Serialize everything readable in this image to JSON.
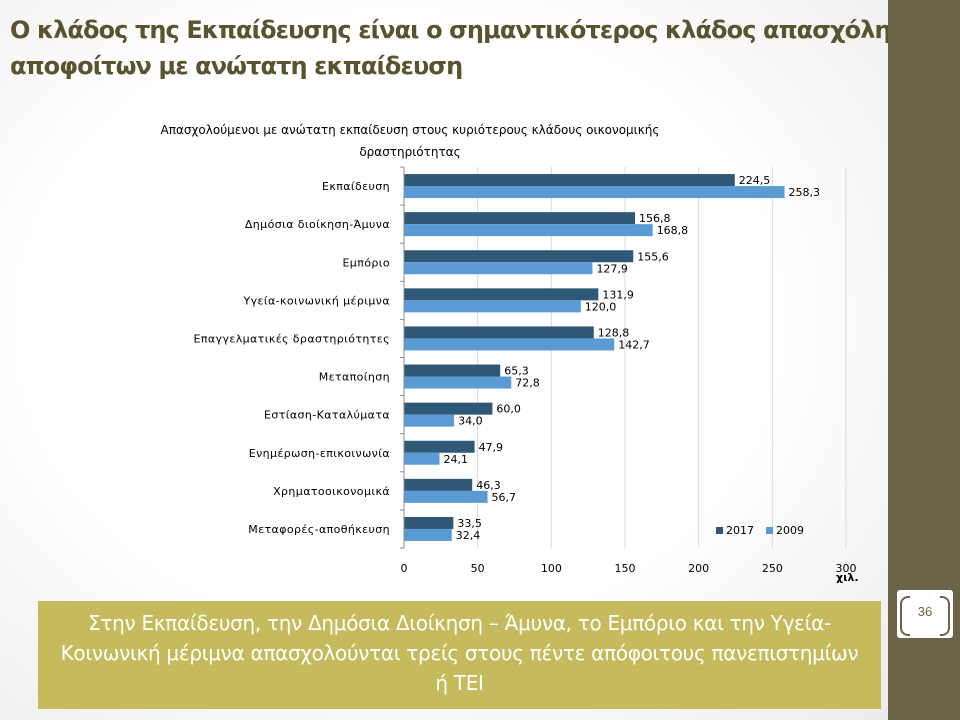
{
  "slide": {
    "title_line1": "Ο κλάδος της Εκπαίδευσης είναι ο σημαντικότερος κλάδος απασχόλησ",
    "title_line2": "αποφοίτων με ανώτατη εκπαίδευση",
    "page_number": "36",
    "callout": "Στην Εκπαίδευση, την Δημόσια Διοίκηση – Άμυνα, το Εμπόριο και την Υγεία-Κοινωνική μέριμνα απασχολούνται τρείς στους πέντε απόφοιτους πανεπιστημίων ή ΤΕΙ",
    "colors": {
      "side_bar": "#6c6449",
      "title": "#59542f",
      "callout_bg": "#c5bb5d",
      "series_2017": "#2e5876",
      "series_2009": "#5b9bd5"
    }
  },
  "chart_data": {
    "type": "bar",
    "orientation": "horizontal",
    "title_line1": "Απασχολούμενοι με ανώτατη εκπαίδευση στους κυριότερους κλάδους οικονομικής",
    "title_line2": "δραστηριότητας",
    "categories": [
      "Εκπαίδευση",
      "Δημόσια διοίκηση-Άμυνα",
      "Εμπόριο",
      "Υγεία-κοινωνική μέριμνα",
      "Επαγγελματικές δραστηριότητες",
      "Μεταποίηση",
      "Εστίαση-Καταλύματα",
      "Ενημέρωση-επικοινωνία",
      "Χρηματοοικονομικά",
      "Μεταφορές-αποθήκευση"
    ],
    "series": [
      {
        "name": "2017",
        "color": "#2e5876",
        "values": [
          224.5,
          156.8,
          155.6,
          131.9,
          128.8,
          65.3,
          60.0,
          47.9,
          46.3,
          33.5
        ],
        "labels": [
          "224,5",
          "156,8",
          "155,6",
          "131,9",
          "128,8",
          "65,3",
          "60,0",
          "47,9",
          "46,3",
          "33,5"
        ]
      },
      {
        "name": "2009",
        "color": "#5b9bd5",
        "values": [
          258.3,
          168.8,
          127.9,
          120.0,
          142.7,
          72.8,
          34.0,
          24.1,
          56.7,
          32.4
        ],
        "labels": [
          "258,3",
          "168,8",
          "127,9",
          "120,0",
          "142,7",
          "72,8",
          "34,0",
          "24,1",
          "56,7",
          "32,4"
        ]
      }
    ],
    "xlim": [
      0,
      300
    ],
    "xticks": [
      0,
      50,
      100,
      150,
      200,
      250,
      300
    ],
    "xticklabels": [
      "0",
      "50",
      "100",
      "150",
      "200",
      "250",
      "300"
    ],
    "xunit": "χιλ.",
    "grid": "vertical",
    "legend_position": "bottom-right"
  }
}
